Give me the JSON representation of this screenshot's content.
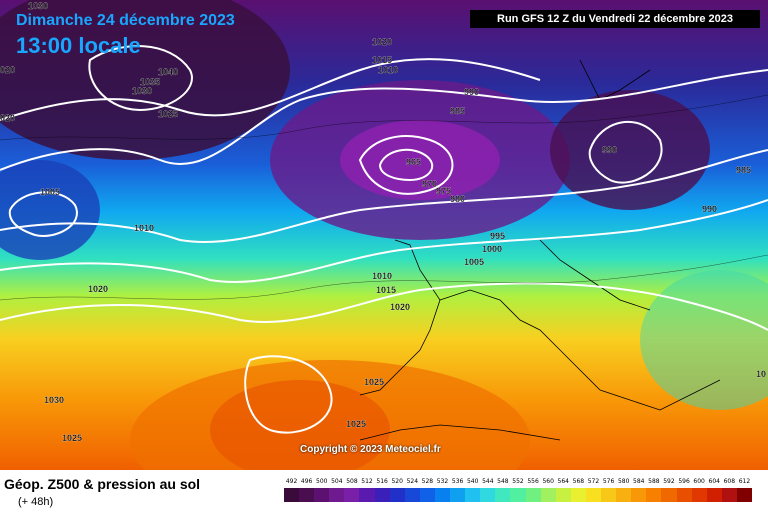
{
  "header": {
    "date": "Dimanche 24 décembre 2023",
    "time": "13:00 locale",
    "run": "Run GFS 12 Z du Vendredi 22 décembre 2023"
  },
  "footer": {
    "title": "Géop. Z500 & pression au sol",
    "subtitle": "(+ 48h)"
  },
  "copyright": "Copyright © 2023 Meteociel.fr",
  "scale_ticks": [
    "492",
    "496",
    "500",
    "504",
    "508",
    "512",
    "516",
    "520",
    "524",
    "528",
    "532",
    "536",
    "540",
    "544",
    "548",
    "552",
    "556",
    "560",
    "564",
    "568",
    "572",
    "576",
    "580",
    "584",
    "588",
    "592",
    "596",
    "600",
    "604",
    "608",
    "612"
  ],
  "scale_colors": [
    "#3a0a3a",
    "#4a0d50",
    "#5c1070",
    "#701a90",
    "#7a20a8",
    "#5a1ab0",
    "#3a20b8",
    "#2030c8",
    "#1848d8",
    "#1060e8",
    "#0880f0",
    "#10a0f0",
    "#20c0f0",
    "#30d8e0",
    "#40e8c0",
    "#50f0a0",
    "#70f080",
    "#a0f060",
    "#c8f040",
    "#e8f030",
    "#f8e020",
    "#f8c818",
    "#f8b010",
    "#f89808",
    "#f88000",
    "#f06800",
    "#e85000",
    "#e03800",
    "#d02000",
    "#b01010",
    "#800000"
  ],
  "isobar_labels": {
    "l1030a": "1030",
    "l1020a": "020",
    "l1020b": "020",
    "l1040": "1040",
    "l1035": "1035",
    "l1030b": "1030",
    "l1025a": "1025",
    "l1020c": "1020",
    "l1015a": "1015",
    "l1010a": "1010",
    "l990a": "990",
    "l985a": "985",
    "l965": "965",
    "l970": "970",
    "l975": "975",
    "l980": "980",
    "l990b": "990",
    "l985b": "985",
    "l990c": "990",
    "l1005a": "1005",
    "l1010b": "1010",
    "l995": "995",
    "l1000": "1000",
    "l1005b": "1005",
    "l1010c": "1010",
    "l1015b": "1015",
    "l1020d": "1020",
    "l1020e": "1020",
    "l1025b": "1025",
    "l1025c": "1025",
    "l1030c": "1030",
    "l1025d": "1025",
    "l10": "10"
  }
}
